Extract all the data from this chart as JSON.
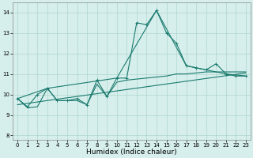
{
  "xlabel": "Humidex (Indice chaleur)",
  "xlim": [
    -0.5,
    23.5
  ],
  "ylim": [
    7.8,
    14.5
  ],
  "yticks": [
    8,
    9,
    10,
    11,
    12,
    13,
    14
  ],
  "xticks": [
    0,
    1,
    2,
    3,
    4,
    5,
    6,
    7,
    8,
    9,
    10,
    11,
    12,
    13,
    14,
    15,
    16,
    17,
    18,
    19,
    20,
    21,
    22,
    23
  ],
  "bg_color": "#d6efec",
  "grid_color": "#aed4cf",
  "line_color": "#1a7a6e",
  "lines": [
    {
      "x": [
        0,
        1,
        2,
        3,
        4,
        5,
        6,
        7,
        8,
        9,
        10,
        11,
        12,
        13,
        14,
        15,
        16,
        17,
        18,
        19,
        20,
        21,
        22,
        23
      ],
      "y": [
        9.8,
        9.4,
        10.0,
        10.3,
        9.7,
        9.7,
        9.8,
        9.5,
        10.7,
        9.9,
        10.8,
        10.8,
        13.5,
        13.4,
        14.1,
        13.0,
        12.5,
        11.4,
        11.3,
        11.2,
        11.5,
        11.0,
        10.9,
        10.9
      ],
      "marker": true
    },
    {
      "x": [
        0,
        3,
        10,
        14,
        17,
        19,
        21,
        23
      ],
      "y": [
        9.8,
        10.3,
        10.8,
        14.1,
        11.4,
        11.2,
        11.0,
        10.9
      ],
      "marker": false
    },
    {
      "x": [
        0,
        1,
        2,
        3,
        4,
        5,
        6,
        7,
        8,
        9,
        10,
        11,
        12,
        13,
        14,
        15,
        16,
        17,
        18,
        19,
        20,
        21,
        22,
        23
      ],
      "y": [
        9.8,
        9.35,
        9.4,
        10.3,
        9.7,
        9.7,
        9.7,
        9.5,
        10.5,
        9.9,
        10.6,
        10.7,
        10.75,
        10.8,
        10.85,
        10.9,
        11.0,
        11.0,
        11.05,
        11.1,
        11.1,
        11.1,
        11.1,
        11.1
      ],
      "marker": false
    },
    {
      "x": [
        0,
        23
      ],
      "y": [
        9.5,
        11.05
      ],
      "marker": false
    }
  ],
  "line_width": 0.8,
  "marker_size": 2.5,
  "tick_labelsize": 5,
  "xlabel_fontsize": 6.5
}
